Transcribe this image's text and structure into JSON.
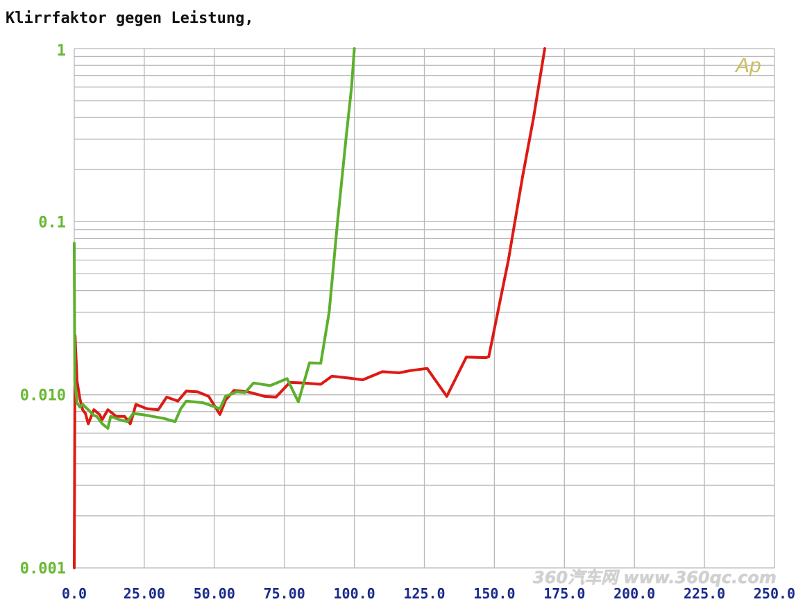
{
  "chart_data": {
    "type": "line",
    "title": "Klirrfaktor gegen Leistung,",
    "xlabel": "",
    "ylabel": "",
    "x_scale": "linear",
    "y_scale": "log",
    "xlim": [
      0,
      250
    ],
    "ylim": [
      0.001,
      1
    ],
    "x_ticks": [
      "0.0",
      "25.00",
      "50.00",
      "75.00",
      "100.0",
      "125.0",
      "150.0",
      "175.0",
      "200.0",
      "225.0",
      "250.0"
    ],
    "x_tick_values": [
      0,
      25,
      50,
      75,
      100,
      125,
      150,
      175,
      200,
      225,
      250
    ],
    "y_ticks": [
      "1",
      "0.1",
      "0.010",
      "0.001"
    ],
    "y_tick_values": [
      1,
      0.1,
      0.01,
      0.001
    ],
    "grid": true,
    "logo": "Ap",
    "colors": {
      "axis_text_x": "#1a2a8a",
      "axis_text_y": "#66b832",
      "grid": "#b8b8b8",
      "logo": "#c8c060"
    },
    "series": [
      {
        "color": "#dd1a14",
        "points": [
          [
            0,
            0.001
          ],
          [
            0.3,
            0.022
          ],
          [
            1,
            0.012
          ],
          [
            2,
            0.0095
          ],
          [
            3,
            0.0082
          ],
          [
            4,
            0.0078
          ],
          [
            5,
            0.0068
          ],
          [
            7,
            0.0082
          ],
          [
            9,
            0.0077
          ],
          [
            10,
            0.0072
          ],
          [
            12,
            0.0082
          ],
          [
            15,
            0.0075
          ],
          [
            18,
            0.0075
          ],
          [
            20,
            0.0068
          ],
          [
            21,
            0.0077
          ],
          [
            22,
            0.0088
          ],
          [
            26,
            0.0083
          ],
          [
            30,
            0.0082
          ],
          [
            33,
            0.0097
          ],
          [
            37,
            0.0092
          ],
          [
            40,
            0.0105
          ],
          [
            44,
            0.0104
          ],
          [
            48,
            0.0098
          ],
          [
            52,
            0.0077
          ],
          [
            54,
            0.0093
          ],
          [
            57,
            0.0106
          ],
          [
            62,
            0.0104
          ],
          [
            68,
            0.0098
          ],
          [
            72,
            0.0097
          ],
          [
            77,
            0.0118
          ],
          [
            82,
            0.0117
          ],
          [
            88,
            0.0115
          ],
          [
            92,
            0.0128
          ],
          [
            98,
            0.0125
          ],
          [
            103,
            0.0122
          ],
          [
            110,
            0.0136
          ],
          [
            116,
            0.0134
          ],
          [
            120,
            0.0138
          ],
          [
            126,
            0.0142
          ],
          [
            133,
            0.0098
          ],
          [
            140,
            0.0165
          ],
          [
            147,
            0.0164
          ],
          [
            148,
            0.0166
          ],
          [
            150,
            0.024
          ],
          [
            155,
            0.06
          ],
          [
            160,
            0.18
          ],
          [
            164,
            0.4
          ],
          [
            168,
            1.0
          ]
        ]
      },
      {
        "color": "#5cb02c",
        "points": [
          [
            0,
            0.075
          ],
          [
            0.2,
            0.012
          ],
          [
            1,
            0.009
          ],
          [
            2,
            0.0085
          ],
          [
            3,
            0.0088
          ],
          [
            5,
            0.0082
          ],
          [
            7,
            0.0076
          ],
          [
            8,
            0.0075
          ],
          [
            10,
            0.0068
          ],
          [
            12,
            0.0064
          ],
          [
            13,
            0.0075
          ],
          [
            16,
            0.0072
          ],
          [
            19,
            0.007
          ],
          [
            21,
            0.0078
          ],
          [
            24,
            0.0077
          ],
          [
            28,
            0.0075
          ],
          [
            32,
            0.0073
          ],
          [
            36,
            0.007
          ],
          [
            38,
            0.0083
          ],
          [
            40,
            0.0092
          ],
          [
            46,
            0.009
          ],
          [
            52,
            0.0083
          ],
          [
            54,
            0.0098
          ],
          [
            58,
            0.0104
          ],
          [
            61,
            0.0103
          ],
          [
            64,
            0.0117
          ],
          [
            70,
            0.0113
          ],
          [
            76,
            0.0124
          ],
          [
            80,
            0.0091
          ],
          [
            84,
            0.0153
          ],
          [
            88,
            0.0152
          ],
          [
            91,
            0.03
          ],
          [
            94,
            0.1
          ],
          [
            97,
            0.3
          ],
          [
            99,
            0.6
          ],
          [
            100,
            1.0
          ]
        ]
      }
    ]
  },
  "watermark": "360汽车网 www.360qc.com"
}
